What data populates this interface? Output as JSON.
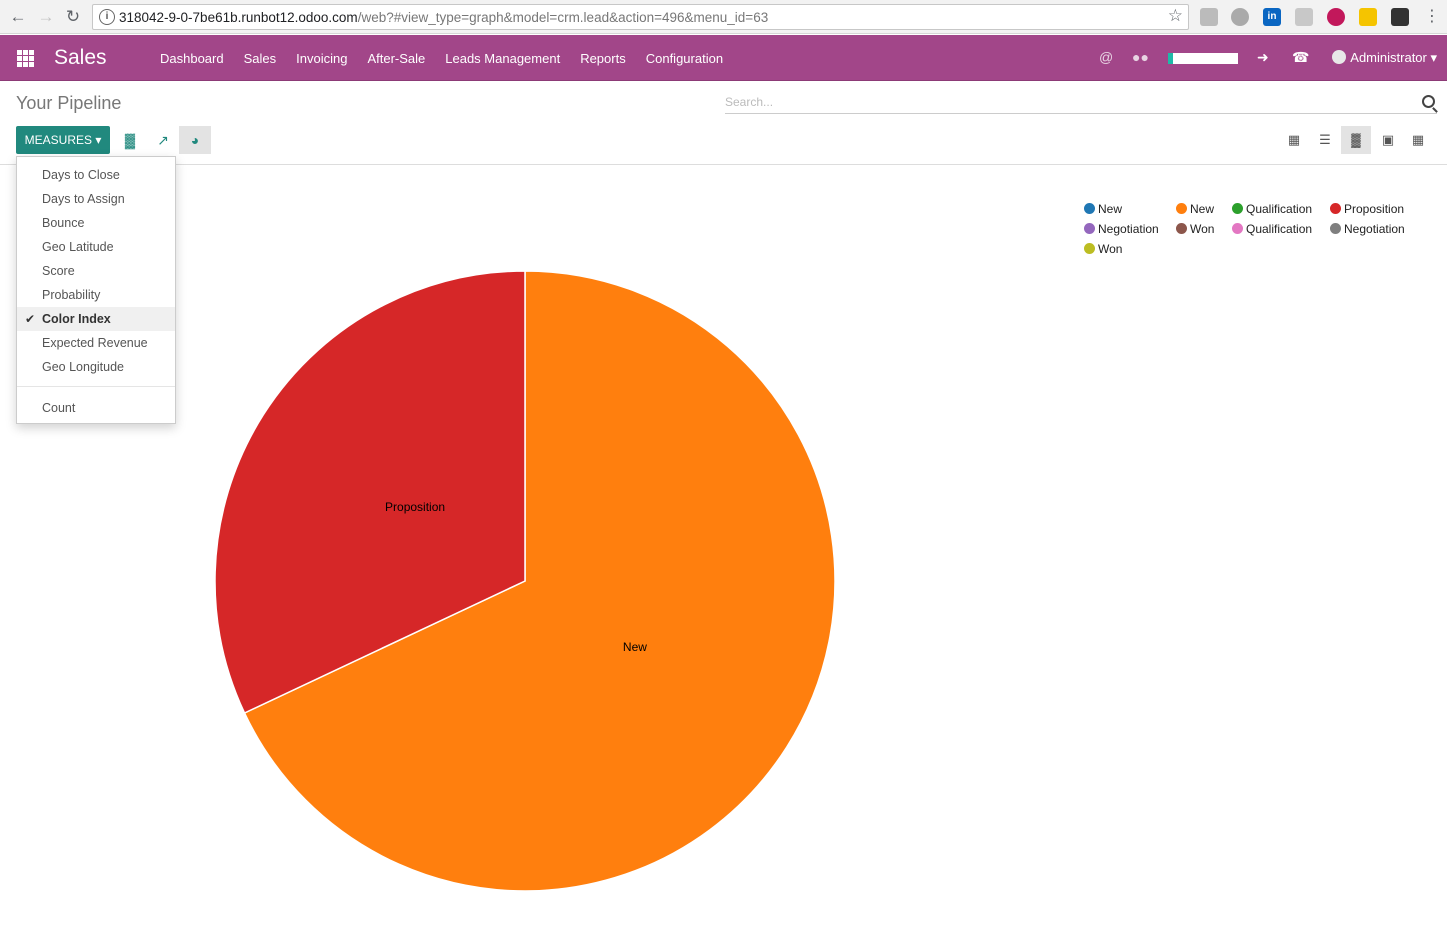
{
  "browser": {
    "url_host": "318042-9-0-7be61b.runbot12.odoo.com",
    "url_path": "/web?#view_type=graph&model=crm.lead&action=496&menu_id=63"
  },
  "navbar": {
    "brand": "Sales",
    "menu": [
      "Dashboard",
      "Sales",
      "Invoicing",
      "After-Sale",
      "Leads Management",
      "Reports",
      "Configuration"
    ],
    "user": "Administrator"
  },
  "control_panel": {
    "title": "Your Pipeline",
    "search_placeholder": "Search...",
    "measures_label": "MEASURES"
  },
  "measures_menu": {
    "items": [
      "Days to Close",
      "Days to Assign",
      "Bounce",
      "Geo Latitude",
      "Score",
      "Probability",
      "Color Index",
      "Expected Revenue",
      "Geo Longitude"
    ],
    "checked": "Color Index",
    "count_label": "Count"
  },
  "colors": {
    "navbar": "#a24689",
    "primary": "#21897e"
  },
  "chart_data": {
    "type": "pie",
    "slices": [
      {
        "label": "New",
        "value": 68,
        "color": "#ff7f0e"
      },
      {
        "label": "Proposition",
        "value": 32,
        "color": "#d62728"
      }
    ],
    "legend": [
      {
        "label": "New",
        "color": "#1f77b4"
      },
      {
        "label": "New",
        "color": "#ff7f0e"
      },
      {
        "label": "Qualification",
        "color": "#2ca02c"
      },
      {
        "label": "Proposition",
        "color": "#d62728"
      },
      {
        "label": "Negotiation",
        "color": "#9467bd"
      },
      {
        "label": "Won",
        "color": "#8c564b"
      },
      {
        "label": "Qualification",
        "color": "#e377c2"
      },
      {
        "label": "Negotiation",
        "color": "#7f7f7f"
      },
      {
        "label": "Won",
        "color": "#bcbd22"
      }
    ],
    "legend_position": "top-right"
  }
}
